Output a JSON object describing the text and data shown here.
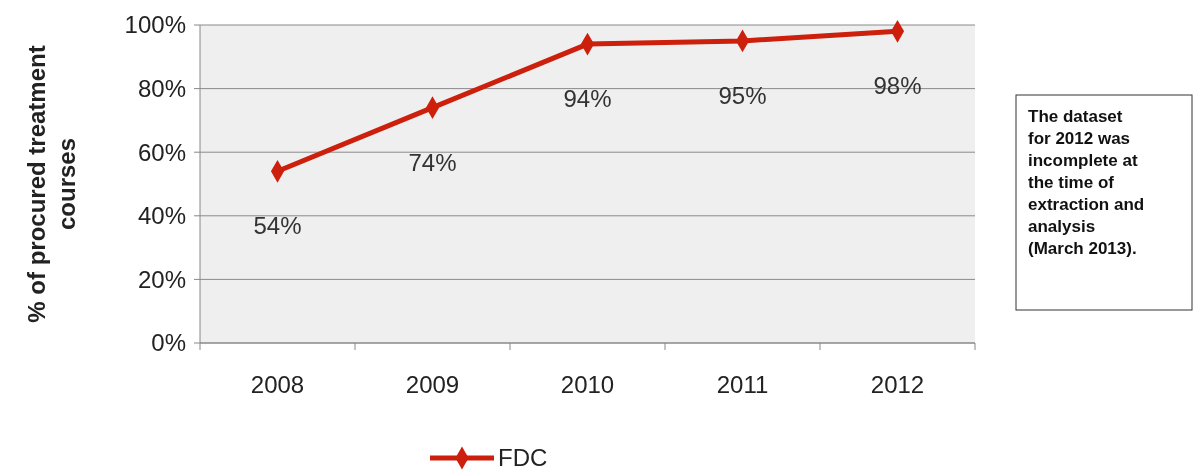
{
  "chart_data": {
    "type": "line",
    "ylabel": "% of procured treatment courses",
    "categories": [
      "2008",
      "2009",
      "2010",
      "2011",
      "2012"
    ],
    "series": [
      {
        "name": "FDC",
        "color": "#cc1f0c",
        "values": [
          54,
          74,
          94,
          95,
          98
        ],
        "value_labels": [
          "54%",
          "74%",
          "94%",
          "95%",
          "98%"
        ]
      }
    ],
    "ylim": [
      0,
      100
    ],
    "yticks": [
      {
        "value": 0,
        "label": "0%"
      },
      {
        "value": 20,
        "label": "20%"
      },
      {
        "value": 40,
        "label": "40%"
      },
      {
        "value": 60,
        "label": "60%"
      },
      {
        "value": 80,
        "label": "80%"
      },
      {
        "value": 100,
        "label": "100%"
      }
    ],
    "grid": "y",
    "legend": "bottom",
    "marker": "diamond",
    "line_style": "solid",
    "annotations": [
      "The dataset for 2012 was incomplete at the time of extraction and analysis (March 2013)."
    ]
  }
}
